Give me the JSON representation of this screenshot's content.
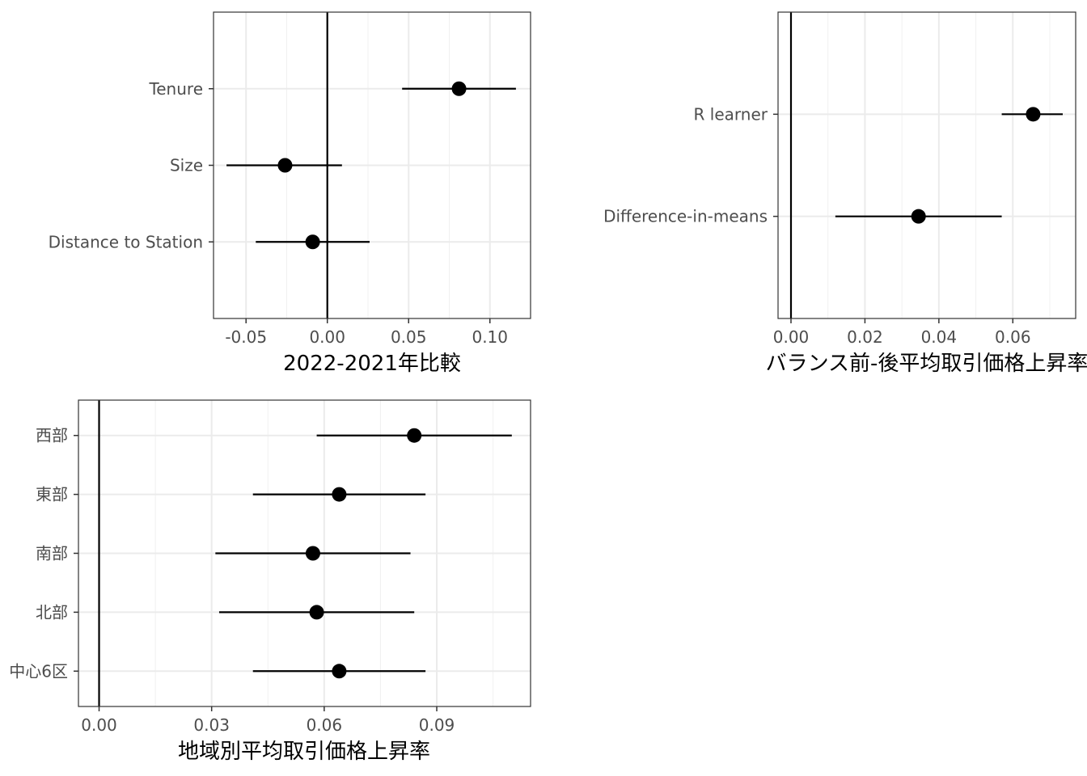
{
  "chart_data": [
    {
      "type": "forest",
      "xlabel": "2022-2021年比較",
      "ylabel": "",
      "xlim": [
        -0.07,
        0.125
      ],
      "xticks": [
        -0.05,
        0.0,
        0.05,
        0.1
      ],
      "xtick_labels": [
        "-0.05",
        "0.00",
        "0.05",
        "0.10"
      ],
      "grid": true,
      "reference_line_x": 0,
      "categories": [
        "Tenure",
        "Size",
        "Distance to Station"
      ],
      "estimates": [
        0.081,
        -0.026,
        -0.009
      ],
      "ci_lower": [
        0.046,
        -0.062,
        -0.044
      ],
      "ci_upper": [
        0.116,
        0.009,
        0.026
      ]
    },
    {
      "type": "forest",
      "xlabel": "バランス前-後平均取引価格上昇率",
      "ylabel": "",
      "xlim": [
        -0.0035,
        0.077
      ],
      "xticks": [
        0.0,
        0.02,
        0.04,
        0.06
      ],
      "xtick_labels": [
        "0.00",
        "0.02",
        "0.04",
        "0.06"
      ],
      "grid": true,
      "reference_line_x": 0,
      "categories": [
        "R learner",
        "Difference-in-means"
      ],
      "estimates": [
        0.0655,
        0.0345
      ],
      "ci_lower": [
        0.057,
        0.012
      ],
      "ci_upper": [
        0.0735,
        0.057
      ]
    },
    {
      "type": "forest",
      "xlabel": "地域別平均取引価格上昇率",
      "ylabel": "",
      "xlim": [
        -0.0055,
        0.115
      ],
      "xticks": [
        0.0,
        0.03,
        0.06,
        0.09
      ],
      "xtick_labels": [
        "0.00",
        "0.03",
        "0.06",
        "0.09"
      ],
      "grid": true,
      "reference_line_x": 0,
      "categories": [
        "西部",
        "東部",
        "南部",
        "北部",
        "中心6区"
      ],
      "estimates": [
        0.084,
        0.064,
        0.057,
        0.058,
        0.064
      ],
      "ci_lower": [
        0.058,
        0.041,
        0.031,
        0.032,
        0.041
      ],
      "ci_upper": [
        0.11,
        0.087,
        0.083,
        0.084,
        0.087
      ]
    }
  ]
}
